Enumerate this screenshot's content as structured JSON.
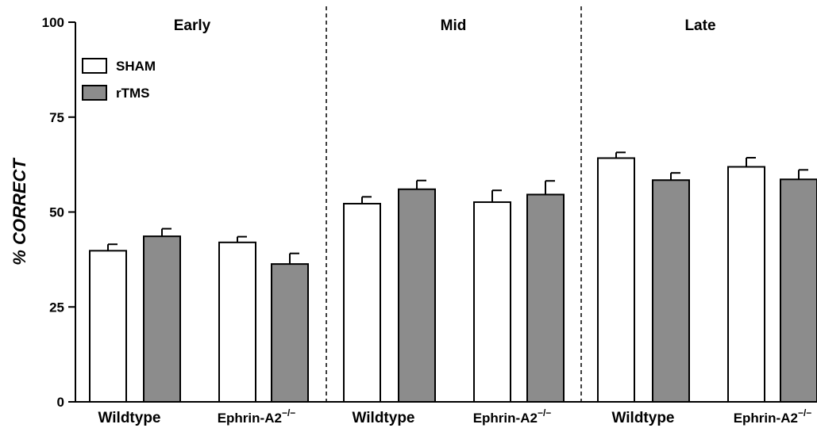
{
  "chart_data": {
    "type": "bar",
    "ylabel": "% CORRECT",
    "ylim": [
      0,
      100
    ],
    "yticks": [
      "0",
      "25",
      "50",
      "75",
      "100"
    ],
    "legend": {
      "placement": "top-left",
      "entries": [
        {
          "name": "SHAM",
          "color": "#ffffff"
        },
        {
          "name": "rTMS",
          "color": "#8c8c8c"
        }
      ]
    },
    "panels": [
      {
        "title": "Early",
        "groups": [
          {
            "name": "Wildtype",
            "values": [
              39.8,
              43.6
            ],
            "errors": [
              1.7,
              2.0
            ]
          },
          {
            "name": "Ephrin-A2",
            "sup": "−/−",
            "values": [
              42.0,
              36.3
            ],
            "errors": [
              1.5,
              2.8
            ]
          }
        ]
      },
      {
        "title": "Mid",
        "groups": [
          {
            "name": "Wildtype",
            "values": [
              52.2,
              56.0
            ],
            "errors": [
              1.8,
              2.3
            ]
          },
          {
            "name": "Ephrin-A2",
            "sup": "−/−",
            "values": [
              52.6,
              54.6
            ],
            "errors": [
              3.1,
              3.6
            ]
          }
        ]
      },
      {
        "title": "Late",
        "groups": [
          {
            "name": "Wildtype",
            "values": [
              64.2,
              58.4
            ],
            "errors": [
              1.5,
              1.9
            ]
          },
          {
            "name": "Ephrin-A2",
            "sup": "−/−",
            "values": [
              61.9,
              58.6
            ],
            "errors": [
              2.4,
              2.5
            ]
          }
        ]
      }
    ],
    "series_colors": [
      "#ffffff",
      "#8c8c8c"
    ],
    "bar_stroke": "#000000",
    "divider_style": "dashed"
  }
}
